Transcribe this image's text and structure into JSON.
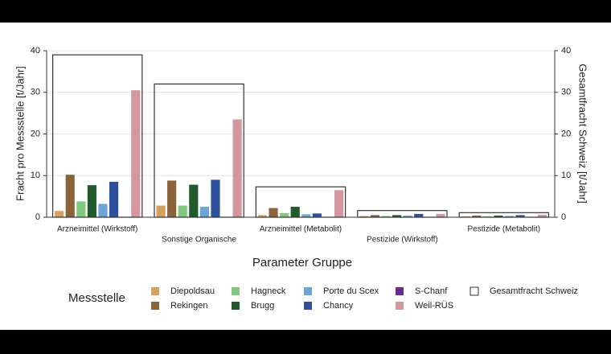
{
  "chart_data": {
    "type": "bar",
    "categories": [
      "Arzneimittel (Wirkstoff)",
      "Sonstige Organische",
      "Arzneimittel (Metabolit)",
      "Pestizide (Wirkstoff)",
      "Pestizide (Metabolit)"
    ],
    "series": [
      {
        "name": "Diepoldsau",
        "color": "#d9a05b",
        "values": [
          1.5,
          2.8,
          0.5,
          0.3,
          0.2
        ]
      },
      {
        "name": "Rekingen",
        "color": "#8c6239",
        "values": [
          10.2,
          8.8,
          2.2,
          0.5,
          0.4
        ]
      },
      {
        "name": "Hagneck",
        "color": "#7fc97f",
        "values": [
          3.8,
          2.8,
          1.0,
          0.3,
          0.2
        ]
      },
      {
        "name": "Brugg",
        "color": "#1f5a2a",
        "values": [
          7.7,
          7.8,
          2.5,
          0.5,
          0.4
        ]
      },
      {
        "name": "Porte du Scex",
        "color": "#6aa6d8",
        "values": [
          3.2,
          2.5,
          0.7,
          0.4,
          0.3
        ]
      },
      {
        "name": "Chancy",
        "color": "#2c4f9e",
        "values": [
          8.5,
          9.0,
          0.9,
          0.8,
          0.5
        ]
      },
      {
        "name": "S-Chanf",
        "color": "#6a2c91",
        "values": [
          0.1,
          0.1,
          0.1,
          0.1,
          0.1
        ]
      },
      {
        "name": "Weil-RÜS",
        "color": "#d4979e",
        "values": [
          30.5,
          23.5,
          6.5,
          0.8,
          0.6
        ]
      },
      {
        "name": "Gesamtfracht Schweiz",
        "color": "#333333",
        "axis": "y2",
        "values": [
          39,
          32,
          7.3,
          1.6,
          1.1
        ]
      }
    ],
    "ylim": [
      0,
      40
    ],
    "yticks": [
      0,
      10,
      20,
      30,
      40
    ],
    "y2lim": [
      0,
      40
    ],
    "y2ticks": [
      0,
      10,
      20,
      30,
      40
    ],
    "ylabel": "Fracht pro Messstelle [t/Jahr]",
    "y2label": "Gesamtfracht Schweiz [t/Jahr]",
    "xlabel": "Parameter Gruppe",
    "legend_title": "Messstelle",
    "grid": true
  }
}
